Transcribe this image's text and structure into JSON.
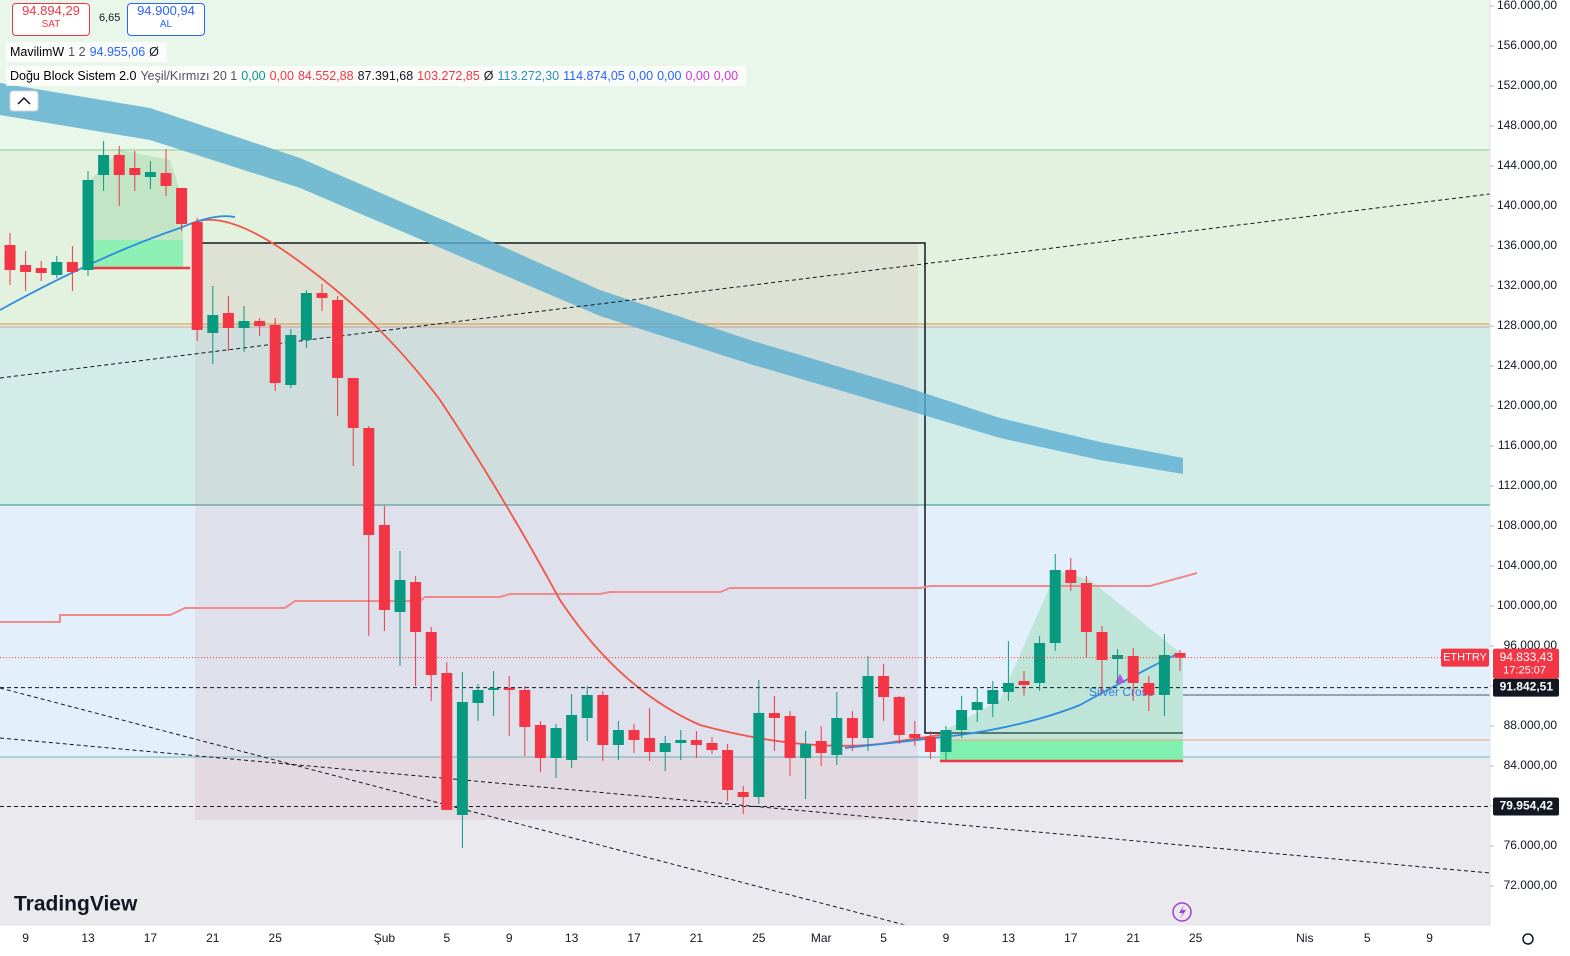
{
  "header": {
    "sell": {
      "price": "94.894,29",
      "label": "SAT"
    },
    "spread": "6,65",
    "buy": {
      "price": "94.900,94",
      "label": "AL"
    },
    "indicators": [
      {
        "name": "MavilimW",
        "params": "1 2",
        "values": [
          "94.955,06",
          "Ø"
        ],
        "colors": [
          "#2962ff",
          "#131722"
        ]
      },
      {
        "name": "Doğu Block Sistem 2.0",
        "params": "Yeşil/Kırmızı 20 1",
        "values": [
          "0,00",
          "0,00",
          "84.552,88",
          "87.391,68",
          "103.272,85",
          "Ø",
          "113.272,30",
          "114.874,05",
          "0,00",
          "0,00",
          "0,00",
          "0,00"
        ],
        "colors": [
          "#089981",
          "#f23645",
          "#f23645",
          "#131722",
          "#f23645",
          "#131722",
          "#2a8fbf",
          "#2962ff",
          "#2962ff",
          "#2962ff",
          "#d633d6",
          "#d633d6"
        ]
      }
    ]
  },
  "logo": "TradingView",
  "chart_data": {
    "type": "candlestick",
    "symbol": "ETHTRY",
    "up_color": "#089981",
    "down_color": "#f23645",
    "categories": [
      null,
      "9",
      null,
      null,
      null,
      "13",
      null,
      null,
      null,
      "17",
      null,
      null,
      null,
      "21",
      null,
      null,
      null,
      "25",
      null,
      null,
      null,
      null,
      null,
      null,
      "Şub",
      null,
      null,
      null,
      "5",
      null,
      null,
      null,
      "9",
      null,
      null,
      null,
      "13",
      null,
      null,
      null,
      "17",
      null,
      null,
      null,
      "21",
      null,
      null,
      null,
      "25",
      null,
      null,
      null,
      "Mar",
      null,
      null,
      null,
      "5",
      null,
      null,
      null,
      "9",
      null,
      null,
      null,
      "13",
      null,
      null,
      null,
      "17",
      null,
      null,
      null,
      "21",
      null,
      null,
      null,
      "25",
      null,
      null,
      null,
      null,
      null,
      null,
      "Nis",
      null,
      null,
      null,
      "5",
      null,
      null,
      null,
      "9",
      null
    ],
    "open": [
      136100,
      134100,
      133800,
      133100,
      134400,
      133600,
      143100,
      145100,
      143800,
      142900,
      143300,
      141800,
      138400,
      127300,
      129300,
      127800,
      128500,
      128100,
      122100,
      126600,
      131300,
      130600,
      122800,
      117800,
      108100,
      99400,
      102400,
      97400,
      93300,
      79100,
      90300,
      91600,
      91800,
      91600,
      88100,
      84800,
      84600,
      88800,
      91100,
      86100,
      87600,
      86800,
      85400,
      86300,
      86600,
      86300,
      85600,
      81400,
      80900,
      89300,
      89000,
      84800,
      86500,
      85100,
      88800,
      86800,
      93000,
      90900,
      87200,
      86900,
      85400,
      87600,
      89600,
      90200,
      91400,
      92500,
      92300,
      96300,
      103600,
      102300,
      97400,
      94700,
      95000,
      92300,
      91100,
      95300,
      null,
      null,
      null,
      null,
      null,
      null,
      null,
      null,
      null,
      null,
      null,
      null,
      null,
      null,
      null,
      null,
      null
    ],
    "high": [
      137300,
      135500,
      134500,
      135000,
      136000,
      143500,
      146500,
      146000,
      145500,
      144500,
      145700,
      141800,
      138800,
      132000,
      131000,
      130000,
      128800,
      128800,
      127700,
      131600,
      132200,
      131000,
      122800,
      118000,
      110000,
      105500,
      103000,
      97900,
      94400,
      93400,
      92200,
      93500,
      93000,
      92000,
      88500,
      88200,
      91200,
      92000,
      91500,
      88500,
      88200,
      89800,
      87000,
      87600,
      87500,
      86900,
      86200,
      82000,
      92600,
      91000,
      89500,
      87500,
      88000,
      91400,
      89500,
      95000,
      94200,
      91000,
      88500,
      87500,
      88000,
      91000,
      91800,
      92500,
      96500,
      93500,
      97000,
      105200,
      104800,
      103000,
      98000,
      95700,
      95800,
      93000,
      97200,
      95600,
      null,
      null,
      null,
      null,
      null,
      null,
      null,
      null,
      null,
      null,
      null,
      null,
      null,
      null,
      null,
      null,
      null
    ],
    "low": [
      132100,
      131500,
      132500,
      132800,
      131500,
      133000,
      141500,
      140000,
      141500,
      141700,
      141000,
      137500,
      126500,
      124200,
      125500,
      125400,
      127000,
      121500,
      121800,
      125800,
      129500,
      119000,
      114000,
      97000,
      97500,
      94000,
      92000,
      90500,
      79600,
      75800,
      88500,
      89000,
      87000,
      85000,
      83400,
      82800,
      83800,
      86500,
      84500,
      84600,
      85300,
      84500,
      83500,
      84600,
      84800,
      85200,
      80500,
      79200,
      80200,
      85500,
      83000,
      80700,
      84000,
      84100,
      85500,
      85500,
      88500,
      86200,
      86000,
      84700,
      84600,
      86800,
      88400,
      88900,
      90500,
      91000,
      91500,
      95500,
      101500,
      94800,
      91200,
      92200,
      90500,
      89500,
      89000,
      93500,
      null,
      null,
      null,
      null,
      null,
      null,
      null,
      null,
      null,
      null,
      null,
      null,
      null,
      null,
      null,
      null,
      null
    ],
    "close": [
      133600,
      133400,
      133300,
      134400,
      133400,
      142600,
      145100,
      143100,
      143100,
      143400,
      142000,
      138200,
      127600,
      129100,
      127800,
      128500,
      128000,
      122300,
      127100,
      131300,
      130800,
      122800,
      117800,
      107100,
      99600,
      102600,
      97400,
      93100,
      79600,
      90400,
      91600,
      91800,
      91600,
      87900,
      84800,
      87800,
      89100,
      91100,
      86100,
      87600,
      86600,
      85400,
      86300,
      86600,
      86100,
      85600,
      81600,
      80900,
      89300,
      88800,
      84800,
      86200,
      85300,
      88800,
      86800,
      93000,
      90900,
      87100,
      86800,
      85400,
      87600,
      89600,
      90400,
      91600,
      92300,
      92100,
      96300,
      103600,
      102300,
      97400,
      94600,
      95100,
      92300,
      91100,
      95100,
      94830,
      null,
      null,
      null,
      null,
      null,
      null,
      null,
      null,
      null,
      null,
      null,
      null,
      null,
      null,
      null,
      null,
      null
    ],
    "ylim": [
      68100,
      160600
    ],
    "yticks": [
      {
        "value": 72000,
        "label": "72.000,00"
      },
      {
        "value": 76000,
        "label": "76.000,00"
      },
      {
        "value": 80000,
        "label": "80.000,00"
      },
      {
        "value": 84000,
        "label": "84.000,00"
      },
      {
        "value": 88000,
        "label": "88.000,00"
      },
      {
        "value": 92000,
        "label": "92.000,00"
      },
      {
        "value": 96000,
        "label": "96.000,00"
      },
      {
        "value": 100000,
        "label": "100.000,00"
      },
      {
        "value": 104000,
        "label": "104.000,00"
      },
      {
        "value": 108000,
        "label": "108.000,00"
      },
      {
        "value": 112000,
        "label": "112.000,00"
      },
      {
        "value": 116000,
        "label": "116.000,00"
      },
      {
        "value": 120000,
        "label": "120.000,00"
      },
      {
        "value": 124000,
        "label": "124.000,00"
      },
      {
        "value": 128000,
        "label": "128.000,00"
      },
      {
        "value": 132000,
        "label": "132.000,00"
      },
      {
        "value": 136000,
        "label": "136.000,00"
      },
      {
        "value": 140000,
        "label": "140.000,00"
      },
      {
        "value": 144000,
        "label": "144.000,00"
      },
      {
        "value": 148000,
        "label": "148.000,00"
      },
      {
        "value": 152000,
        "label": "152.000,00"
      },
      {
        "value": 156000,
        "label": "156.000,00"
      },
      {
        "value": 160000,
        "label": "160.000,00"
      }
    ],
    "grid": false,
    "levels": [
      {
        "value": 91842.51,
        "label": "91.842,51"
      },
      {
        "value": 79954.42,
        "label": "79.954,42"
      }
    ],
    "last_price": {
      "value": 94833.43,
      "label": "94.833,43",
      "countdown": "17:25:07"
    },
    "annotations": [
      {
        "text": "Silver Cross"
      }
    ]
  }
}
